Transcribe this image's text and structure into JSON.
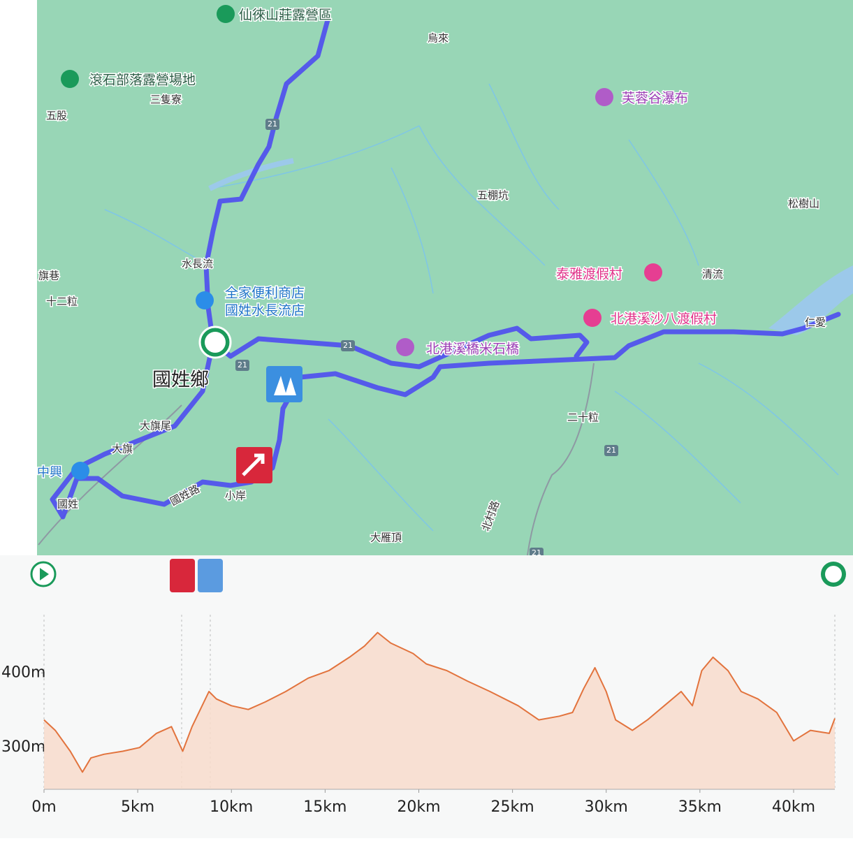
{
  "map": {
    "labels": [
      "仙徠山莊露營區",
      "烏來",
      "滾石部落露營場地",
      "三隻寮",
      "五股",
      "芙蓉谷瀑布",
      "五棚坑",
      "松樹山",
      "水長流",
      "清流",
      "泰雅渡假村",
      "旗巷",
      "十二粒",
      "全家便利商店",
      "國姓水長流店",
      "北港溪沙八渡假村",
      "仁愛",
      "北港溪橋米石橋",
      "國姓鄉",
      "大旗尾",
      "二十粒",
      "大旗",
      "中興",
      "國姓",
      "國姓路",
      "小岸",
      "大雁頂",
      "北村路"
    ],
    "road_number": "21"
  },
  "chart_data": {
    "type": "area",
    "color": "#e2733d",
    "fill": "#f8dccc",
    "x": [
      0,
      0.6,
      1.4,
      2.05,
      2.5,
      3.2,
      4.2,
      5.1,
      6.0,
      6.8,
      7.4,
      7.9,
      8.8,
      9.2,
      10.0,
      10.9,
      11.8,
      12.9,
      14.1,
      15.2,
      16.3,
      17.1,
      17.8,
      18.5,
      19.7,
      20.4,
      21.5,
      22.6,
      23.8,
      25.3,
      26.4,
      27.5,
      28.2,
      28.8,
      29.4,
      30.0,
      30.5,
      31.4,
      32.2,
      33.1,
      34.0,
      34.6,
      35.1,
      35.7,
      36.5,
      37.2,
      38.1,
      39.1,
      40.0,
      40.9,
      41.9,
      42.2
    ],
    "values": [
      337,
      323,
      295,
      267,
      286,
      291,
      295,
      300,
      319,
      328,
      295,
      328,
      375,
      365,
      356,
      351,
      361,
      375,
      393,
      403,
      421,
      436,
      454,
      440,
      426,
      412,
      403,
      389,
      375,
      356,
      337,
      342,
      347,
      379,
      407,
      375,
      337,
      323,
      337,
      356,
      375,
      356,
      403,
      421,
      403,
      375,
      365,
      347,
      309,
      323,
      319,
      339
    ],
    "xlim": [
      0,
      42.2
    ],
    "ylim": [
      244,
      478
    ],
    "xticks": [
      {
        "value": 0,
        "label": "0m"
      },
      {
        "value": 5,
        "label": "5km"
      },
      {
        "value": 10,
        "label": "10km"
      },
      {
        "value": 15,
        "label": "15km"
      },
      {
        "value": 20,
        "label": "20km"
      },
      {
        "value": 25,
        "label": "25km"
      },
      {
        "value": 30,
        "label": "30km"
      },
      {
        "value": 35,
        "label": "35km"
      },
      {
        "value": 40,
        "label": "40km"
      }
    ],
    "yticks": [
      {
        "value": 300,
        "label": "300m"
      },
      {
        "value": 400,
        "label": "400m"
      }
    ]
  }
}
